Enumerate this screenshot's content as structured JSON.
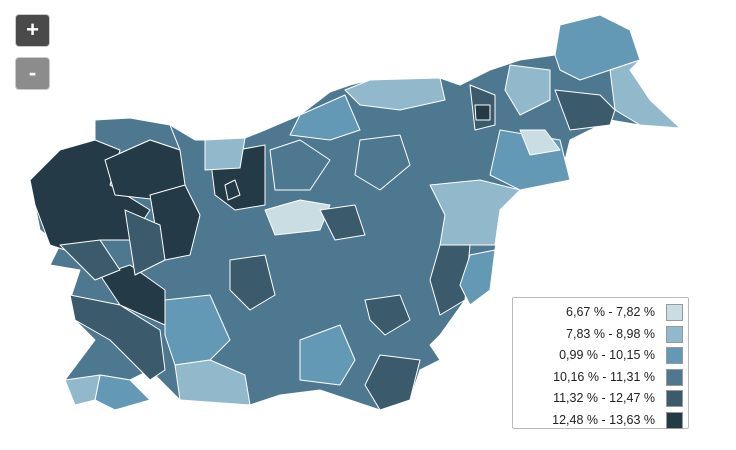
{
  "controls": {
    "zoom_in": "+",
    "zoom_out": "-"
  },
  "legend": {
    "items": [
      {
        "label": "6,67 % - 7,82 %",
        "color": "#c9dde3"
      },
      {
        "label": "7,83 % - 8,98 %",
        "color": "#92b8cb"
      },
      {
        "label": "0,99 % - 10,15 %",
        "color": "#6399b4"
      },
      {
        "label": "10,16 % - 11,31 %",
        "color": "#4d7890"
      },
      {
        "label": "11,32 % - 12,47 %",
        "color": "#3b5b6d"
      },
      {
        "label": "12,48 % - 13,63 %",
        "color": "#243a47"
      }
    ]
  }
}
